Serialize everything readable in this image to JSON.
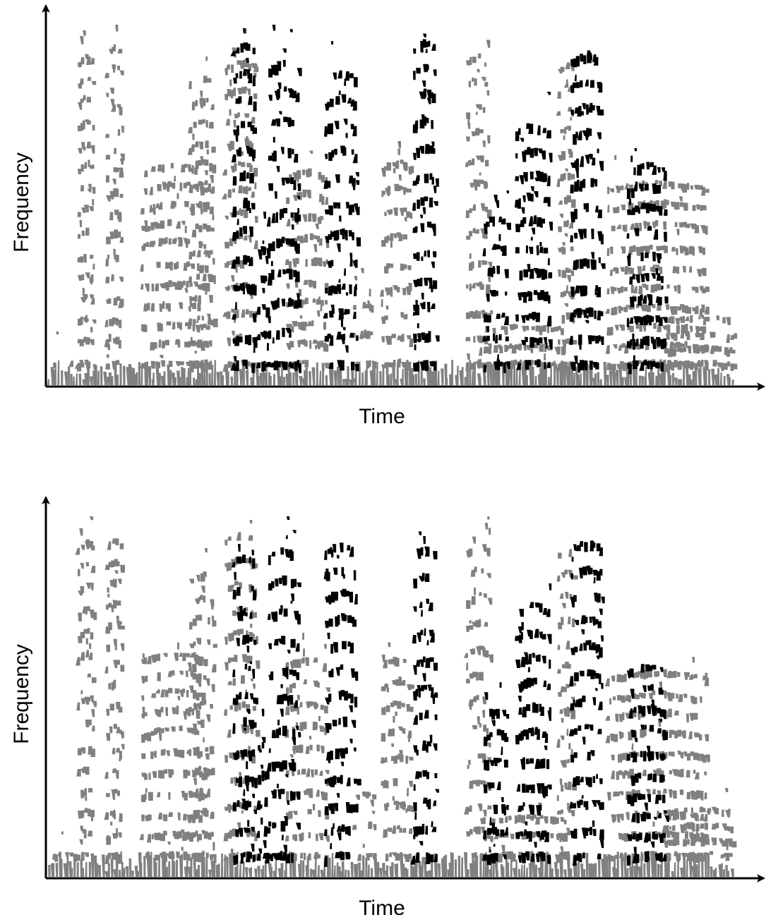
{
  "panels": [
    {
      "x_label": "Time",
      "y_label": "Frequency"
    },
    {
      "x_label": "Time",
      "y_label": "Frequency"
    }
  ]
}
